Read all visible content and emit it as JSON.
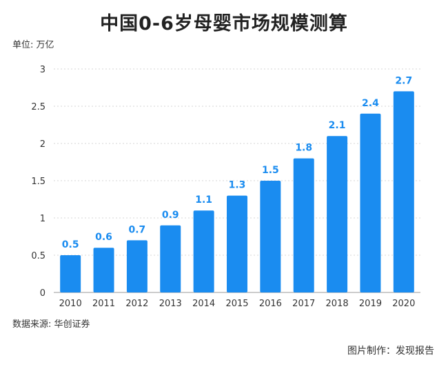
{
  "title": "中国0-6岁母婴市场规模测算",
  "unit_label": "单位: 万亿",
  "source_label": "数据来源: 华创证券",
  "credit_label": "图片制作：发现报告",
  "chart_data": {
    "type": "bar",
    "title": "中国0-6岁母婴市场规模测算",
    "xlabel": "",
    "ylabel": "",
    "categories": [
      "2010",
      "2011",
      "2012",
      "2013",
      "2014",
      "2015",
      "2016",
      "2017",
      "2018",
      "2019",
      "2020"
    ],
    "values": [
      0.5,
      0.6,
      0.7,
      0.9,
      1.1,
      1.3,
      1.5,
      1.8,
      2.1,
      2.4,
      2.7
    ],
    "data_labels": [
      "0.5",
      "0.6",
      "0.7",
      "0.9",
      "1.1",
      "1.3",
      "1.5",
      "1.8",
      "2.1",
      "2.4",
      "2.7"
    ],
    "yticks": [
      "0",
      "0.5",
      "1",
      "1.5",
      "2",
      "2.5",
      "3"
    ],
    "ylim": [
      0,
      3
    ],
    "grid": true,
    "legend": "none",
    "bar_color": "#1a8cf0",
    "label_color": "#1a8cf0"
  }
}
